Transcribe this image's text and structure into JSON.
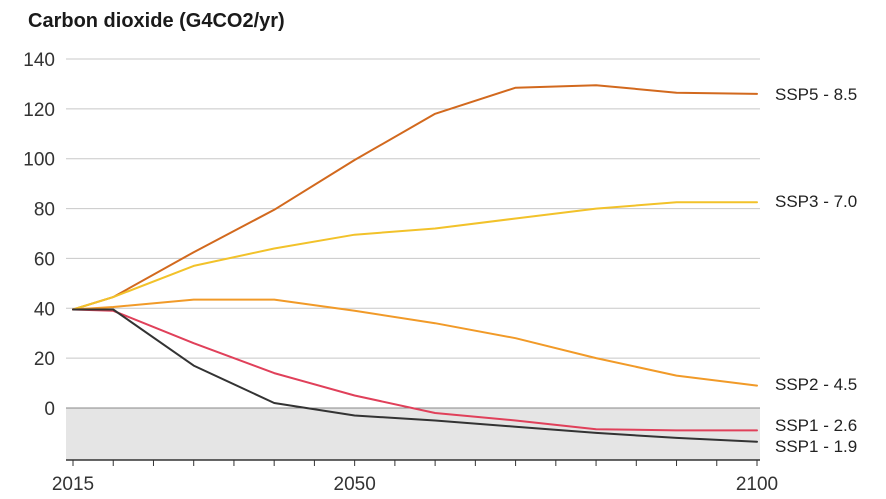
{
  "chart_data": {
    "type": "line",
    "title": "Carbon dioxide (G4CO2/yr)",
    "xlabel": "",
    "ylabel": "",
    "xlim": [
      2015,
      2100
    ],
    "ylim": [
      -20,
      140
    ],
    "x_ticks": [
      2015,
      2050,
      2100
    ],
    "y_ticks": [
      0,
      20,
      40,
      60,
      80,
      100,
      120,
      140
    ],
    "grid": true,
    "negative_region_shaded": true,
    "legend": "inline-right",
    "series": [
      {
        "name": "SSP5 - 8.5",
        "color": "#d2691e",
        "points": [
          [
            2015,
            39.5
          ],
          [
            2020,
            44.5
          ],
          [
            2030,
            62.5
          ],
          [
            2040,
            79.5
          ],
          [
            2050,
            99.5
          ],
          [
            2060,
            118
          ],
          [
            2070,
            128.5
          ],
          [
            2080,
            129.5
          ],
          [
            2090,
            126.5
          ],
          [
            2100,
            126
          ]
        ]
      },
      {
        "name": "SSP3 - 7.0",
        "color": "#f2c22a",
        "points": [
          [
            2015,
            39.5
          ],
          [
            2020,
            44.5
          ],
          [
            2030,
            57
          ],
          [
            2040,
            64
          ],
          [
            2050,
            69.5
          ],
          [
            2060,
            72
          ],
          [
            2070,
            76
          ],
          [
            2080,
            80
          ],
          [
            2090,
            82.5
          ],
          [
            2100,
            82.5
          ]
        ]
      },
      {
        "name": "SSP2 - 4.5",
        "color": "#f19a28",
        "points": [
          [
            2015,
            39.5
          ],
          [
            2020,
            40.5
          ],
          [
            2030,
            43.5
          ],
          [
            2040,
            43.5
          ],
          [
            2050,
            39
          ],
          [
            2060,
            34
          ],
          [
            2070,
            28
          ],
          [
            2080,
            20
          ],
          [
            2090,
            13
          ],
          [
            2100,
            9
          ]
        ]
      },
      {
        "name": "SSP1 - 2.6",
        "color": "#e0405a",
        "points": [
          [
            2015,
            39.5
          ],
          [
            2020,
            39
          ],
          [
            2030,
            26
          ],
          [
            2040,
            14
          ],
          [
            2050,
            5
          ],
          [
            2060,
            -2
          ],
          [
            2070,
            -5
          ],
          [
            2080,
            -8.5
          ],
          [
            2090,
            -9
          ],
          [
            2100,
            -9
          ]
        ]
      },
      {
        "name": "SSP1 - 1.9",
        "color": "#333333",
        "points": [
          [
            2015,
            39.5
          ],
          [
            2020,
            39.5
          ],
          [
            2030,
            17
          ],
          [
            2040,
            2
          ],
          [
            2050,
            -3
          ],
          [
            2060,
            -5
          ],
          [
            2070,
            -7.5
          ],
          [
            2080,
            -10
          ],
          [
            2090,
            -12
          ],
          [
            2100,
            -13.5
          ]
        ]
      }
    ],
    "colors": {
      "grid": "#c8c8c8",
      "zero_line": "#888888",
      "negative_fill": "#e5e5e5",
      "axis": "#333333"
    }
  }
}
